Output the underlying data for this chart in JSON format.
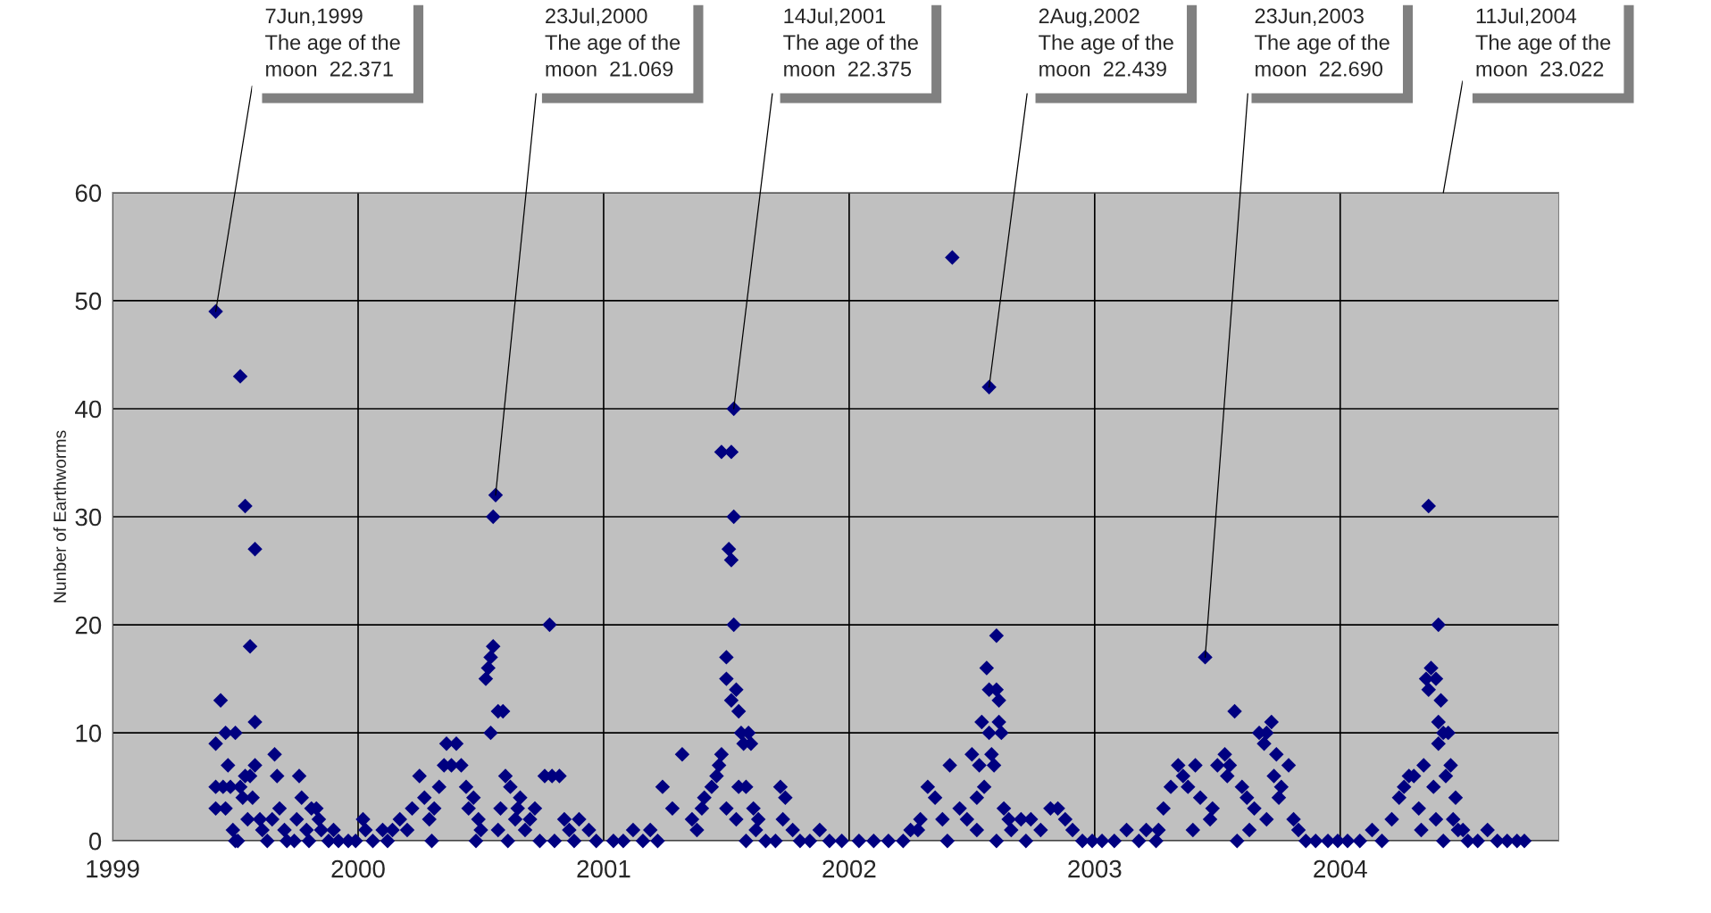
{
  "chart_data": {
    "type": "scatter",
    "ylabel": "Nunber of Earthworms",
    "xlim": [
      1999,
      2004.89
    ],
    "xticks": [
      1999,
      2000,
      2001,
      2002,
      2003,
      2004
    ],
    "ylim": [
      0,
      60
    ],
    "yticks": [
      0,
      10,
      20,
      30,
      40,
      50,
      60
    ],
    "grid": true,
    "marker": "diamond",
    "annotations": [
      {
        "text": "7Jun,1999\nThe age of the\nmoon  22.371",
        "x": 1999.42,
        "y": 49
      },
      {
        "text": "23Jul,2000\nThe age of the\nmoon  21.069",
        "x": 2000.56,
        "y": 32
      },
      {
        "text": "14Jul,2001\nThe age of the\nmoon  22.375",
        "x": 2001.53,
        "y": 40
      },
      {
        "text": "2Aug,2002\nThe age of the\nmoon  22.439",
        "x": 2002.57,
        "y": 42
      },
      {
        "text": "23Jun,2003\nThe age of the\nmoon  22.690",
        "x": 2003.45,
        "y": 17
      },
      "11Jul,2004\nThe age of the\nmoon  23.022"
    ],
    "x": [
      1999.42,
      1999.52,
      1999.54,
      1999.58,
      1999.56,
      1999.58,
      1999.44,
      1999.46,
      1999.5,
      1999.42,
      1999.58,
      1999.42,
      1999.45,
      1999.48,
      1999.52,
      1999.56,
      1999.57,
      1999.42,
      1999.46,
      1999.49,
      1999.5,
      1999.53,
      1999.6,
      1999.61,
      1999.63,
      1999.66,
      1999.67,
      1999.68,
      1999.65,
      1999.71,
      1999.74,
      1999.76,
      1999.77,
      1999.75,
      1999.79,
      1999.81,
      1999.83,
      1999.84,
      1999.85,
      1999.88,
      1999.9,
      1999.92,
      1999.96,
      1999.99,
      1999.47,
      1999.54,
      1999.55,
      1999.51,
      1999.7,
      1999.8,
      2000.02,
      2000.03,
      2000.06,
      2000.1,
      2000.14,
      2000.17,
      2000.2,
      2000.22,
      2000.25,
      2000.27,
      2000.29,
      2000.31,
      2000.33,
      2000.35,
      2000.36,
      2000.38,
      2000.4,
      2000.42,
      2000.44,
      2000.45,
      2000.47,
      2000.49,
      2000.5,
      2000.52,
      2000.53,
      2000.54,
      2000.55,
      2000.55,
      2000.56,
      2000.54,
      2000.57,
      2000.59,
      2000.58,
      2000.6,
      2000.62,
      2000.64,
      2000.66,
      2000.68,
      2000.7,
      2000.72,
      2000.76,
      2000.78,
      2000.79,
      2000.82,
      2000.84,
      2000.86,
      2000.9,
      2000.94,
      2000.97,
      2000.12,
      2000.3,
      2000.48,
      2000.61,
      2000.74,
      2000.88,
      2000.57,
      2000.65,
      2000.8,
      2001.04,
      2001.08,
      2001.12,
      2001.16,
      2001.19,
      2001.22,
      2001.24,
      2001.28,
      2001.32,
      2001.36,
      2001.38,
      2001.4,
      2001.41,
      2001.44,
      2001.46,
      2001.47,
      2001.48,
      2001.48,
      2001.5,
      2001.5,
      2001.51,
      2001.52,
      2001.52,
      2001.52,
      2001.53,
      2001.53,
      2001.53,
      2001.54,
      2001.55,
      2001.55,
      2001.56,
      2001.57,
      2001.58,
      2001.59,
      2001.6,
      2001.61,
      2001.62,
      2001.63,
      2001.66,
      2001.7,
      2001.72,
      2001.73,
      2001.74,
      2001.77,
      2001.8,
      2001.84,
      2001.88,
      2001.92,
      2001.97,
      2001.5,
      2001.54,
      2001.58,
      2002.04,
      2002.1,
      2002.16,
      2002.22,
      2002.25,
      2002.28,
      2002.29,
      2002.32,
      2002.35,
      2002.38,
      2002.41,
      2002.42,
      2002.45,
      2002.48,
      2002.5,
      2002.52,
      2002.53,
      2002.54,
      2002.55,
      2002.56,
      2002.57,
      2002.57,
      2002.57,
      2002.58,
      2002.59,
      2002.6,
      2002.6,
      2002.61,
      2002.61,
      2002.62,
      2002.63,
      2002.65,
      2002.66,
      2002.7,
      2002.74,
      2002.78,
      2002.82,
      2002.85,
      2002.88,
      2002.91,
      2002.95,
      2002.99,
      2002.4,
      2002.6,
      2002.72,
      2002.52,
      2003.03,
      2003.08,
      2003.13,
      2003.18,
      2003.21,
      2003.25,
      2003.26,
      2003.28,
      2003.31,
      2003.34,
      2003.36,
      2003.38,
      2003.41,
      2003.43,
      2003.45,
      2003.48,
      2003.5,
      2003.53,
      2003.54,
      2003.55,
      2003.57,
      2003.6,
      2003.62,
      2003.65,
      2003.67,
      2003.69,
      2003.7,
      2003.72,
      2003.73,
      2003.74,
      2003.75,
      2003.76,
      2003.79,
      2003.81,
      2003.83,
      2003.86,
      2003.9,
      2003.95,
      2003.99,
      2003.4,
      2003.47,
      2003.58,
      2003.63,
      2003.7,
      2004.03,
      2004.08,
      2004.13,
      2004.17,
      2004.21,
      2004.24,
      2004.26,
      2004.28,
      2004.3,
      2004.32,
      2004.34,
      2004.35,
      2004.36,
      2004.36,
      2004.37,
      2004.38,
      2004.39,
      2004.39,
      2004.4,
      2004.4,
      2004.4,
      2004.41,
      2004.42,
      2004.43,
      2004.44,
      2004.45,
      2004.46,
      2004.47,
      2004.48,
      2004.5,
      2004.52,
      2004.56,
      2004.6,
      2004.64,
      2004.68,
      2004.72,
      2004.75,
      2004.33,
      2004.42
    ],
    "series": [
      {
        "color": "#000080",
        "values": [
          49,
          43,
          31,
          27,
          18,
          11,
          13,
          10,
          10,
          9,
          7,
          5,
          5,
          5,
          5,
          6,
          4,
          3,
          3,
          1,
          0,
          4,
          2,
          1,
          0,
          8,
          6,
          3,
          2,
          0,
          0,
          6,
          4,
          2,
          1,
          3,
          3,
          2,
          1,
          0,
          1,
          0,
          0,
          0,
          7,
          6,
          2,
          0,
          1,
          0,
          2,
          1,
          0,
          1,
          1,
          2,
          1,
          3,
          6,
          4,
          2,
          3,
          5,
          7,
          9,
          7,
          9,
          7,
          5,
          3,
          4,
          2,
          1,
          15,
          16,
          17,
          18,
          30,
          32,
          10,
          12,
          12,
          3,
          6,
          5,
          2,
          4,
          1,
          2,
          3,
          6,
          20,
          6,
          6,
          2,
          1,
          2,
          1,
          0,
          0,
          0,
          0,
          0,
          0,
          0,
          1,
          3,
          0,
          0,
          0,
          1,
          0,
          1,
          0,
          5,
          3,
          8,
          2,
          1,
          3,
          4,
          5,
          6,
          7,
          36,
          8,
          15,
          17,
          27,
          13,
          26,
          36,
          40,
          20,
          30,
          14,
          12,
          5,
          10,
          9,
          5,
          10,
          9,
          3,
          1,
          2,
          0,
          0,
          5,
          2,
          4,
          1,
          0,
          0,
          1,
          0,
          0,
          3,
          2,
          0,
          0,
          0,
          0,
          0,
          1,
          1,
          2,
          5,
          4,
          2,
          7,
          54,
          3,
          2,
          8,
          4,
          7,
          11,
          5,
          16,
          10,
          42,
          14,
          8,
          7,
          19,
          14,
          13,
          11,
          10,
          3,
          2,
          1,
          2,
          2,
          1,
          3,
          3,
          2,
          1,
          0,
          0,
          0,
          0,
          0,
          1,
          0,
          0,
          1,
          0,
          1,
          0,
          1,
          3,
          5,
          7,
          6,
          5,
          7,
          4,
          17,
          3,
          7,
          8,
          6,
          7,
          12,
          5,
          4,
          3,
          10,
          9,
          10,
          11,
          6,
          8,
          4,
          5,
          7,
          2,
          1,
          0,
          0,
          0,
          0,
          1,
          2,
          0,
          1,
          2,
          0,
          0,
          1,
          0,
          2,
          4,
          5,
          6,
          6,
          3,
          7,
          15,
          31,
          14,
          16,
          5,
          15,
          2,
          20,
          11,
          9,
          13,
          10,
          6,
          10,
          7,
          2,
          4,
          1,
          1,
          0,
          0,
          1,
          0,
          0,
          0,
          0,
          1,
          0
        ]
      }
    ]
  }
}
